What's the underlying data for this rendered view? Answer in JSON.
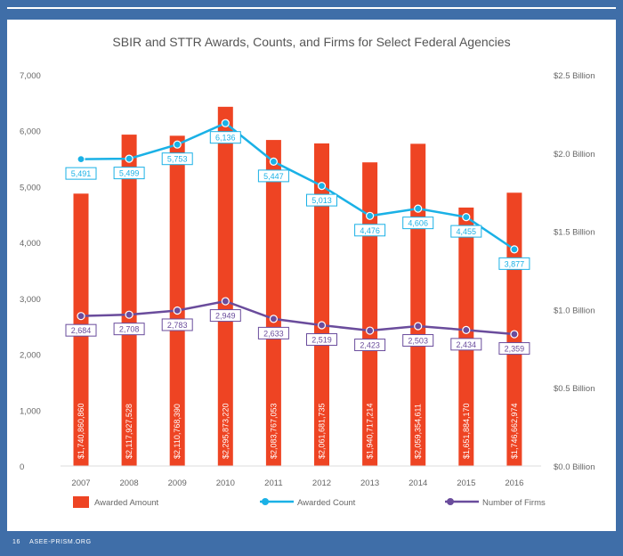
{
  "page": {
    "page_number": "16",
    "site": "ASEE-PRISM.ORG"
  },
  "chart_data": {
    "type": "bar",
    "title": "SBIR and STTR Awards, Counts, and Firms for Select Federal Agencies",
    "categories": [
      "2007",
      "2008",
      "2009",
      "2010",
      "2011",
      "2012",
      "2013",
      "2014",
      "2015",
      "2016"
    ],
    "left_axis": {
      "ylim": [
        0,
        7000
      ],
      "ticks": [
        "0",
        "1,000",
        "2,000",
        "3,000",
        "4,000",
        "5,000",
        "6,000",
        "7,000"
      ]
    },
    "right_axis": {
      "ylim": [
        0,
        2.5
      ],
      "ticks": [
        "$0.0 Billion",
        "$0.5 Billion",
        "$1.0 Billion",
        "$1.5 Billion",
        "$2.0 Billion",
        "$2.5 Billion"
      ]
    },
    "bar_series": {
      "name": "Awarded Amount",
      "color": "#ee4423",
      "values": [
        1740860860,
        2117927528,
        2110768390,
        2295873220,
        2083767053,
        2061681735,
        1940717214,
        2059354611,
        1651884170,
        1746662974
      ],
      "labels": [
        "$1,740,860,860",
        "$2,117,927,528",
        "$2,110,768,390",
        "$2,295,873,220",
        "$2,083,767,053",
        "$2,061,681,735",
        "$1,940,717,214",
        "$2,059,354,611",
        "$1,651,884,170",
        "$1,746,662,974"
      ]
    },
    "line_series": [
      {
        "name": "Awarded Count",
        "color": "#1ab1e6",
        "values": [
          5491,
          5499,
          5753,
          6136,
          5447,
          5013,
          4476,
          4606,
          4455,
          3877
        ],
        "labels": [
          "5,491",
          "5,499",
          "5,753",
          "6,136",
          "5,447",
          "5,013",
          "4,476",
          "4,606",
          "4,455",
          "3,877"
        ]
      },
      {
        "name": "Number of Firms",
        "color": "#6a4c9c",
        "values": [
          2684,
          2708,
          2783,
          2949,
          2633,
          2519,
          2423,
          2503,
          2434,
          2359
        ],
        "labels": [
          "2,684",
          "2,708",
          "2,783",
          "2,949",
          "2,633",
          "2,519",
          "2,423",
          "2,503",
          "2,434",
          "2,359"
        ]
      }
    ],
    "grid": false,
    "legend": "bottom"
  }
}
